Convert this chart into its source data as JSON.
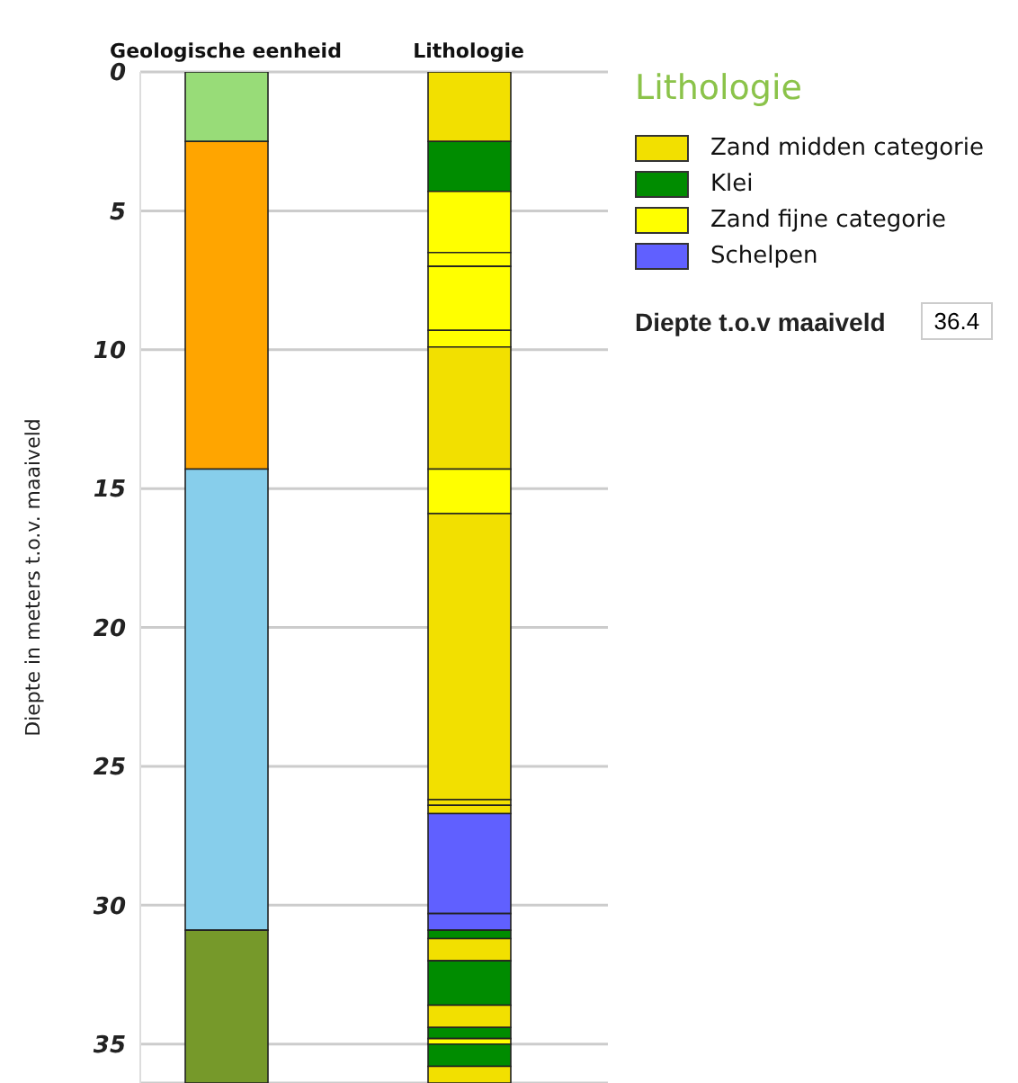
{
  "chart_data": {
    "type": "bar",
    "stacked": true,
    "categories": [
      "Geologische eenheid",
      "Lithologie"
    ],
    "ylabel": "Diepte in meters t.o.v. maaiveld",
    "legend_title": "Lithologie",
    "legend": "right",
    "grid": "y",
    "ylim": [
      36.4,
      0
    ],
    "yticks": [
      0,
      5,
      10,
      15,
      20,
      25,
      30,
      35
    ],
    "annotations": [
      "Diepte t.o.v maaiveld",
      "36.4"
    ],
    "series": [
      {
        "color": "#98dc78",
        "values": [
          2.5,
          null
        ]
      },
      {
        "color": "#ffa500",
        "values": [
          11.8,
          null
        ]
      },
      {
        "color": "#87ceeb",
        "values": [
          16.6,
          null
        ]
      },
      {
        "color": "#76992a",
        "values": [
          5.5,
          null
        ]
      },
      {
        "name": "Zand midden categorie",
        "color": "#f2e000",
        "values": [
          null,
          2.5
        ]
      },
      {
        "name": "Klei",
        "color": "#008c00",
        "values": [
          null,
          1.8
        ]
      },
      {
        "name": "Zand fijne categorie",
        "color": "#ffff00",
        "values": [
          null,
          2.2
        ]
      },
      {
        "color": "#ffff00",
        "values": [
          null,
          0.5
        ]
      },
      {
        "color": "#ffff00",
        "values": [
          null,
          2.3
        ]
      },
      {
        "color": "#ffff00",
        "values": [
          null,
          0.6
        ]
      },
      {
        "color": "#f2e000",
        "values": [
          null,
          4.4
        ]
      },
      {
        "color": "#ffff00",
        "values": [
          null,
          1.6
        ]
      },
      {
        "color": "#f2e000",
        "values": [
          null,
          10.3
        ]
      },
      {
        "color": "#f2e000",
        "values": [
          null,
          0.2
        ]
      },
      {
        "color": "#f2e000",
        "values": [
          null,
          0.3
        ]
      },
      {
        "name": "Schelpen",
        "color": "#6060ff",
        "values": [
          null,
          3.6
        ]
      },
      {
        "color": "#6060ff",
        "values": [
          null,
          0.6
        ]
      },
      {
        "color": "#008c00",
        "values": [
          null,
          0.3
        ]
      },
      {
        "color": "#f2e000",
        "values": [
          null,
          0.8
        ]
      },
      {
        "color": "#008c00",
        "values": [
          null,
          1.6
        ]
      },
      {
        "color": "#f2e000",
        "values": [
          null,
          0.8
        ]
      },
      {
        "color": "#008c00",
        "values": [
          null,
          0.4
        ]
      },
      {
        "color": "#ffff00",
        "values": [
          null,
          0.2
        ]
      },
      {
        "color": "#008c00",
        "values": [
          null,
          0.8
        ]
      },
      {
        "color": "#f2e000",
        "values": [
          null,
          0.6
        ]
      }
    ]
  }
}
